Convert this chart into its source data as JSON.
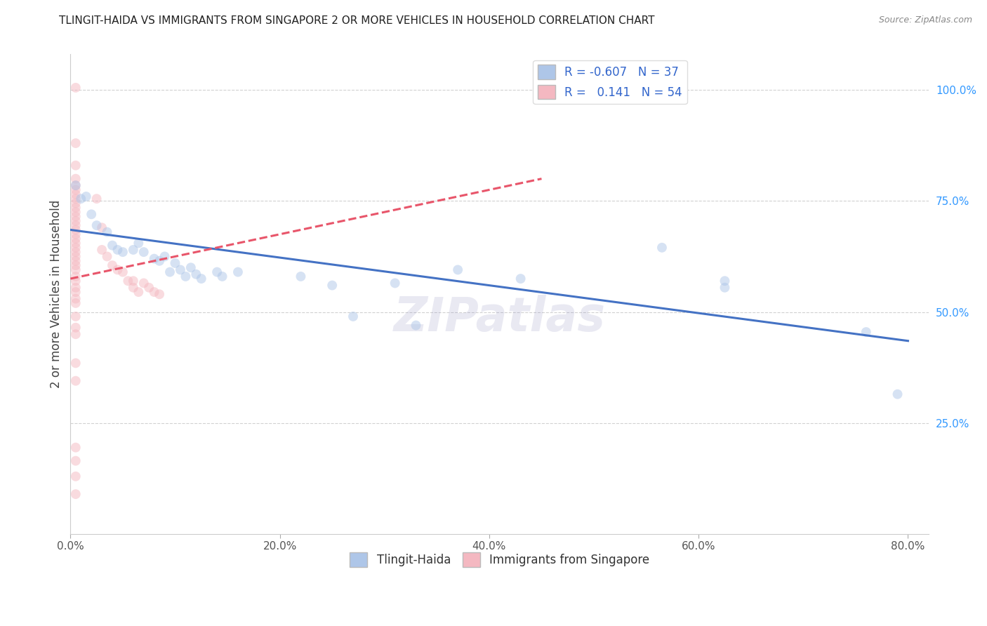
{
  "title": "TLINGIT-HAIDA VS IMMIGRANTS FROM SINGAPORE 2 OR MORE VEHICLES IN HOUSEHOLD CORRELATION CHART",
  "source": "Source: ZipAtlas.com",
  "ylabel": "2 or more Vehicles in Household",
  "xlim": [
    0.0,
    0.82
  ],
  "ylim": [
    0.0,
    1.08
  ],
  "xticks": [
    0.0,
    0.2,
    0.4,
    0.6,
    0.8
  ],
  "yticks": [
    0.25,
    0.5,
    0.75,
    1.0
  ],
  "ytick_labels": [
    "25.0%",
    "50.0%",
    "75.0%",
    "100.0%"
  ],
  "xtick_labels": [
    "0.0%",
    "20.0%",
    "40.0%",
    "60.0%",
    "80.0%"
  ],
  "legend_entries": [
    {
      "color": "#aec6e8",
      "R": "-0.607",
      "N": "37",
      "label": "Tlingit-Haida"
    },
    {
      "color": "#f4b8c1",
      "R": "0.141",
      "N": "54",
      "label": "Immigrants from Singapore"
    }
  ],
  "blue_scatter": [
    [
      0.005,
      0.785
    ],
    [
      0.01,
      0.755
    ],
    [
      0.015,
      0.76
    ],
    [
      0.02,
      0.72
    ],
    [
      0.025,
      0.695
    ],
    [
      0.035,
      0.68
    ],
    [
      0.04,
      0.65
    ],
    [
      0.045,
      0.64
    ],
    [
      0.05,
      0.635
    ],
    [
      0.06,
      0.64
    ],
    [
      0.065,
      0.655
    ],
    [
      0.07,
      0.635
    ],
    [
      0.08,
      0.62
    ],
    [
      0.085,
      0.615
    ],
    [
      0.09,
      0.625
    ],
    [
      0.095,
      0.59
    ],
    [
      0.1,
      0.61
    ],
    [
      0.105,
      0.595
    ],
    [
      0.11,
      0.58
    ],
    [
      0.115,
      0.6
    ],
    [
      0.12,
      0.585
    ],
    [
      0.125,
      0.575
    ],
    [
      0.14,
      0.59
    ],
    [
      0.145,
      0.58
    ],
    [
      0.16,
      0.59
    ],
    [
      0.22,
      0.58
    ],
    [
      0.25,
      0.56
    ],
    [
      0.27,
      0.49
    ],
    [
      0.31,
      0.565
    ],
    [
      0.33,
      0.47
    ],
    [
      0.37,
      0.595
    ],
    [
      0.43,
      0.575
    ],
    [
      0.565,
      0.645
    ],
    [
      0.625,
      0.57
    ],
    [
      0.625,
      0.555
    ],
    [
      0.76,
      0.455
    ],
    [
      0.79,
      0.315
    ]
  ],
  "pink_scatter": [
    [
      0.005,
      1.005
    ],
    [
      0.005,
      0.88
    ],
    [
      0.005,
      0.83
    ],
    [
      0.005,
      0.8
    ],
    [
      0.005,
      0.785
    ],
    [
      0.005,
      0.775
    ],
    [
      0.005,
      0.765
    ],
    [
      0.005,
      0.755
    ],
    [
      0.005,
      0.745
    ],
    [
      0.005,
      0.735
    ],
    [
      0.005,
      0.725
    ],
    [
      0.005,
      0.715
    ],
    [
      0.005,
      0.705
    ],
    [
      0.005,
      0.695
    ],
    [
      0.005,
      0.685
    ],
    [
      0.005,
      0.675
    ],
    [
      0.005,
      0.665
    ],
    [
      0.005,
      0.655
    ],
    [
      0.005,
      0.645
    ],
    [
      0.005,
      0.635
    ],
    [
      0.005,
      0.625
    ],
    [
      0.005,
      0.615
    ],
    [
      0.005,
      0.605
    ],
    [
      0.005,
      0.595
    ],
    [
      0.005,
      0.58
    ],
    [
      0.005,
      0.57
    ],
    [
      0.005,
      0.555
    ],
    [
      0.005,
      0.545
    ],
    [
      0.005,
      0.53
    ],
    [
      0.005,
      0.52
    ],
    [
      0.005,
      0.49
    ],
    [
      0.005,
      0.465
    ],
    [
      0.005,
      0.45
    ],
    [
      0.025,
      0.755
    ],
    [
      0.03,
      0.69
    ],
    [
      0.03,
      0.64
    ],
    [
      0.035,
      0.625
    ],
    [
      0.04,
      0.605
    ],
    [
      0.045,
      0.595
    ],
    [
      0.05,
      0.59
    ],
    [
      0.055,
      0.57
    ],
    [
      0.06,
      0.57
    ],
    [
      0.06,
      0.555
    ],
    [
      0.065,
      0.545
    ],
    [
      0.07,
      0.565
    ],
    [
      0.075,
      0.555
    ],
    [
      0.08,
      0.545
    ],
    [
      0.085,
      0.54
    ],
    [
      0.005,
      0.195
    ],
    [
      0.005,
      0.165
    ],
    [
      0.005,
      0.385
    ],
    [
      0.005,
      0.345
    ],
    [
      0.005,
      0.13
    ],
    [
      0.005,
      0.09
    ]
  ],
  "blue_line": {
    "x0": 0.0,
    "y0": 0.685,
    "x1": 0.8,
    "y1": 0.435
  },
  "pink_line": {
    "x0": 0.0,
    "y0": 0.575,
    "x1": 0.09,
    "y1": 0.625
  },
  "pink_dashed_line": {
    "x0": 0.0,
    "y0": 0.575,
    "x1": 0.45,
    "y1": 0.8
  },
  "watermark": "ZIPatlas",
  "scatter_size": 100,
  "scatter_alpha": 0.5,
  "line_width": 2.2
}
